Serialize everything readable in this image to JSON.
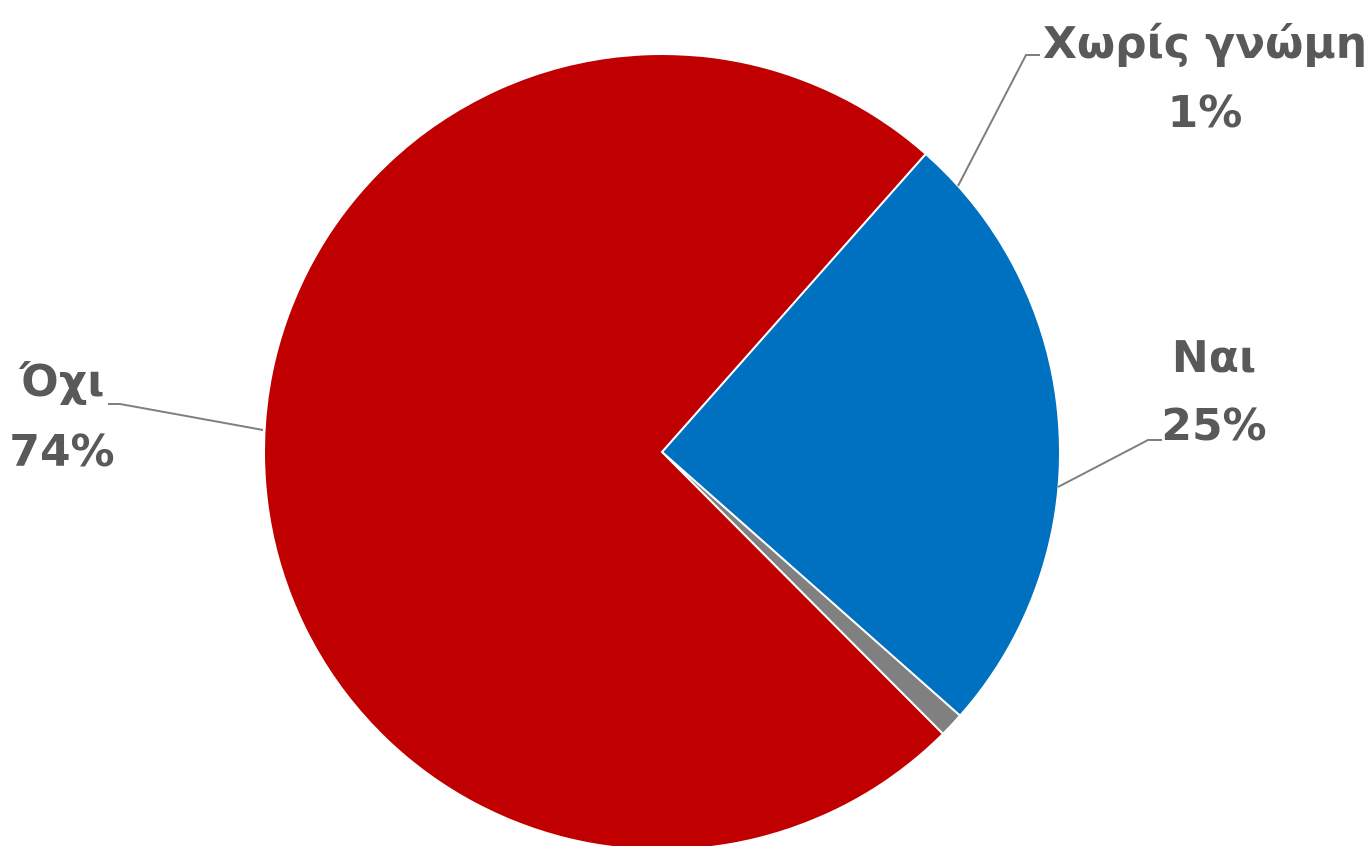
{
  "chart_data": {
    "type": "pie",
    "slices": [
      {
        "name": "Ναι",
        "value": 25,
        "value_label": "25%",
        "color": "#0070C0"
      },
      {
        "name": "Χωρίς γνώμη",
        "value": 1,
        "value_label": "1%",
        "color": "#808080"
      },
      {
        "name": "Όχι",
        "value": 74,
        "value_label": "74%",
        "color": "#C00000"
      }
    ],
    "start": "top-right, clockwise",
    "label_color": "#595959",
    "legend": "none",
    "title": ""
  }
}
